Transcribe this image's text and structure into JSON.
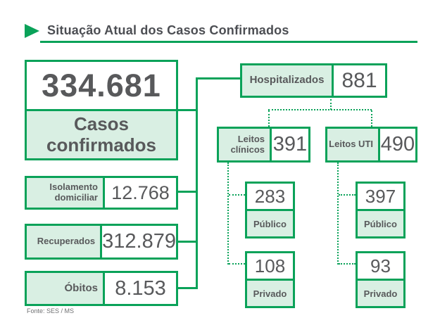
{
  "title": "Situação Atual dos Casos Confirmados",
  "main_stat": {
    "value": "334.681",
    "label": "Casos confirmados"
  },
  "left_stats": [
    {
      "label": "Isolamento domiciliar",
      "value": "12.768"
    },
    {
      "label": "Recuperados",
      "value": "312.879"
    },
    {
      "label": "Óbitos",
      "value": "8.153"
    }
  ],
  "hospitalized": {
    "label": "Hospitalizados",
    "value": "881"
  },
  "beds": [
    {
      "label": "Leitos clínicos",
      "value": "391",
      "breakdown": [
        {
          "label": "Público",
          "value": "283"
        },
        {
          "label": "Privado",
          "value": "108"
        }
      ]
    },
    {
      "label": "Leitos UTI",
      "value": "490",
      "breakdown": [
        {
          "label": "Público",
          "value": "397"
        },
        {
          "label": "Privado",
          "value": "93"
        }
      ]
    }
  ],
  "footer": "Fonte: SES / MS",
  "colors": {
    "green": "#0aa259",
    "light_green": "#d9efe3",
    "text": "#58595b"
  }
}
